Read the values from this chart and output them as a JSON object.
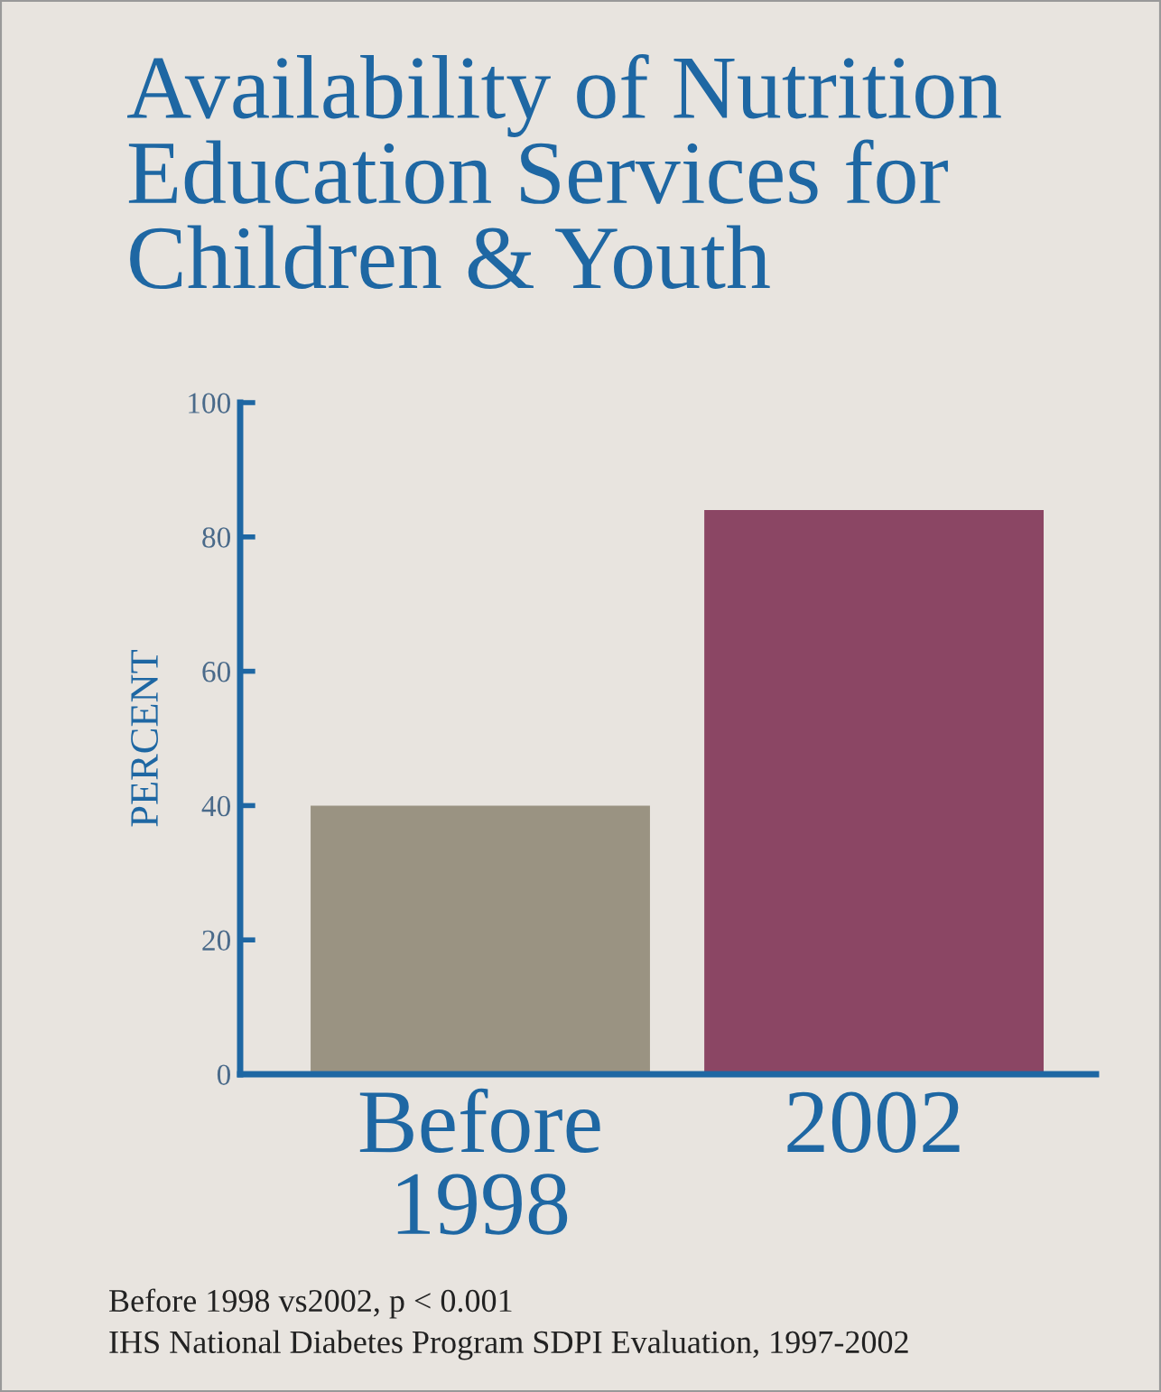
{
  "chart_data": {
    "type": "bar",
    "title": "Availability of Nutrition\nEducation Services for\nChildren & Youth",
    "ylabel": "PERCENT",
    "categories": [
      "Before\n1998",
      "2002"
    ],
    "values": [
      40,
      84
    ],
    "colors": [
      "#9a9382",
      "#8b4664"
    ],
    "ylim": [
      0,
      100
    ],
    "yticks": [
      0,
      20,
      40,
      60,
      80,
      100
    ],
    "grid": false,
    "annotations": [
      "Before 1998 vs2002, p < 0.001",
      "IHS National Diabetes Program SDPI Evaluation, 1997-2002"
    ]
  }
}
